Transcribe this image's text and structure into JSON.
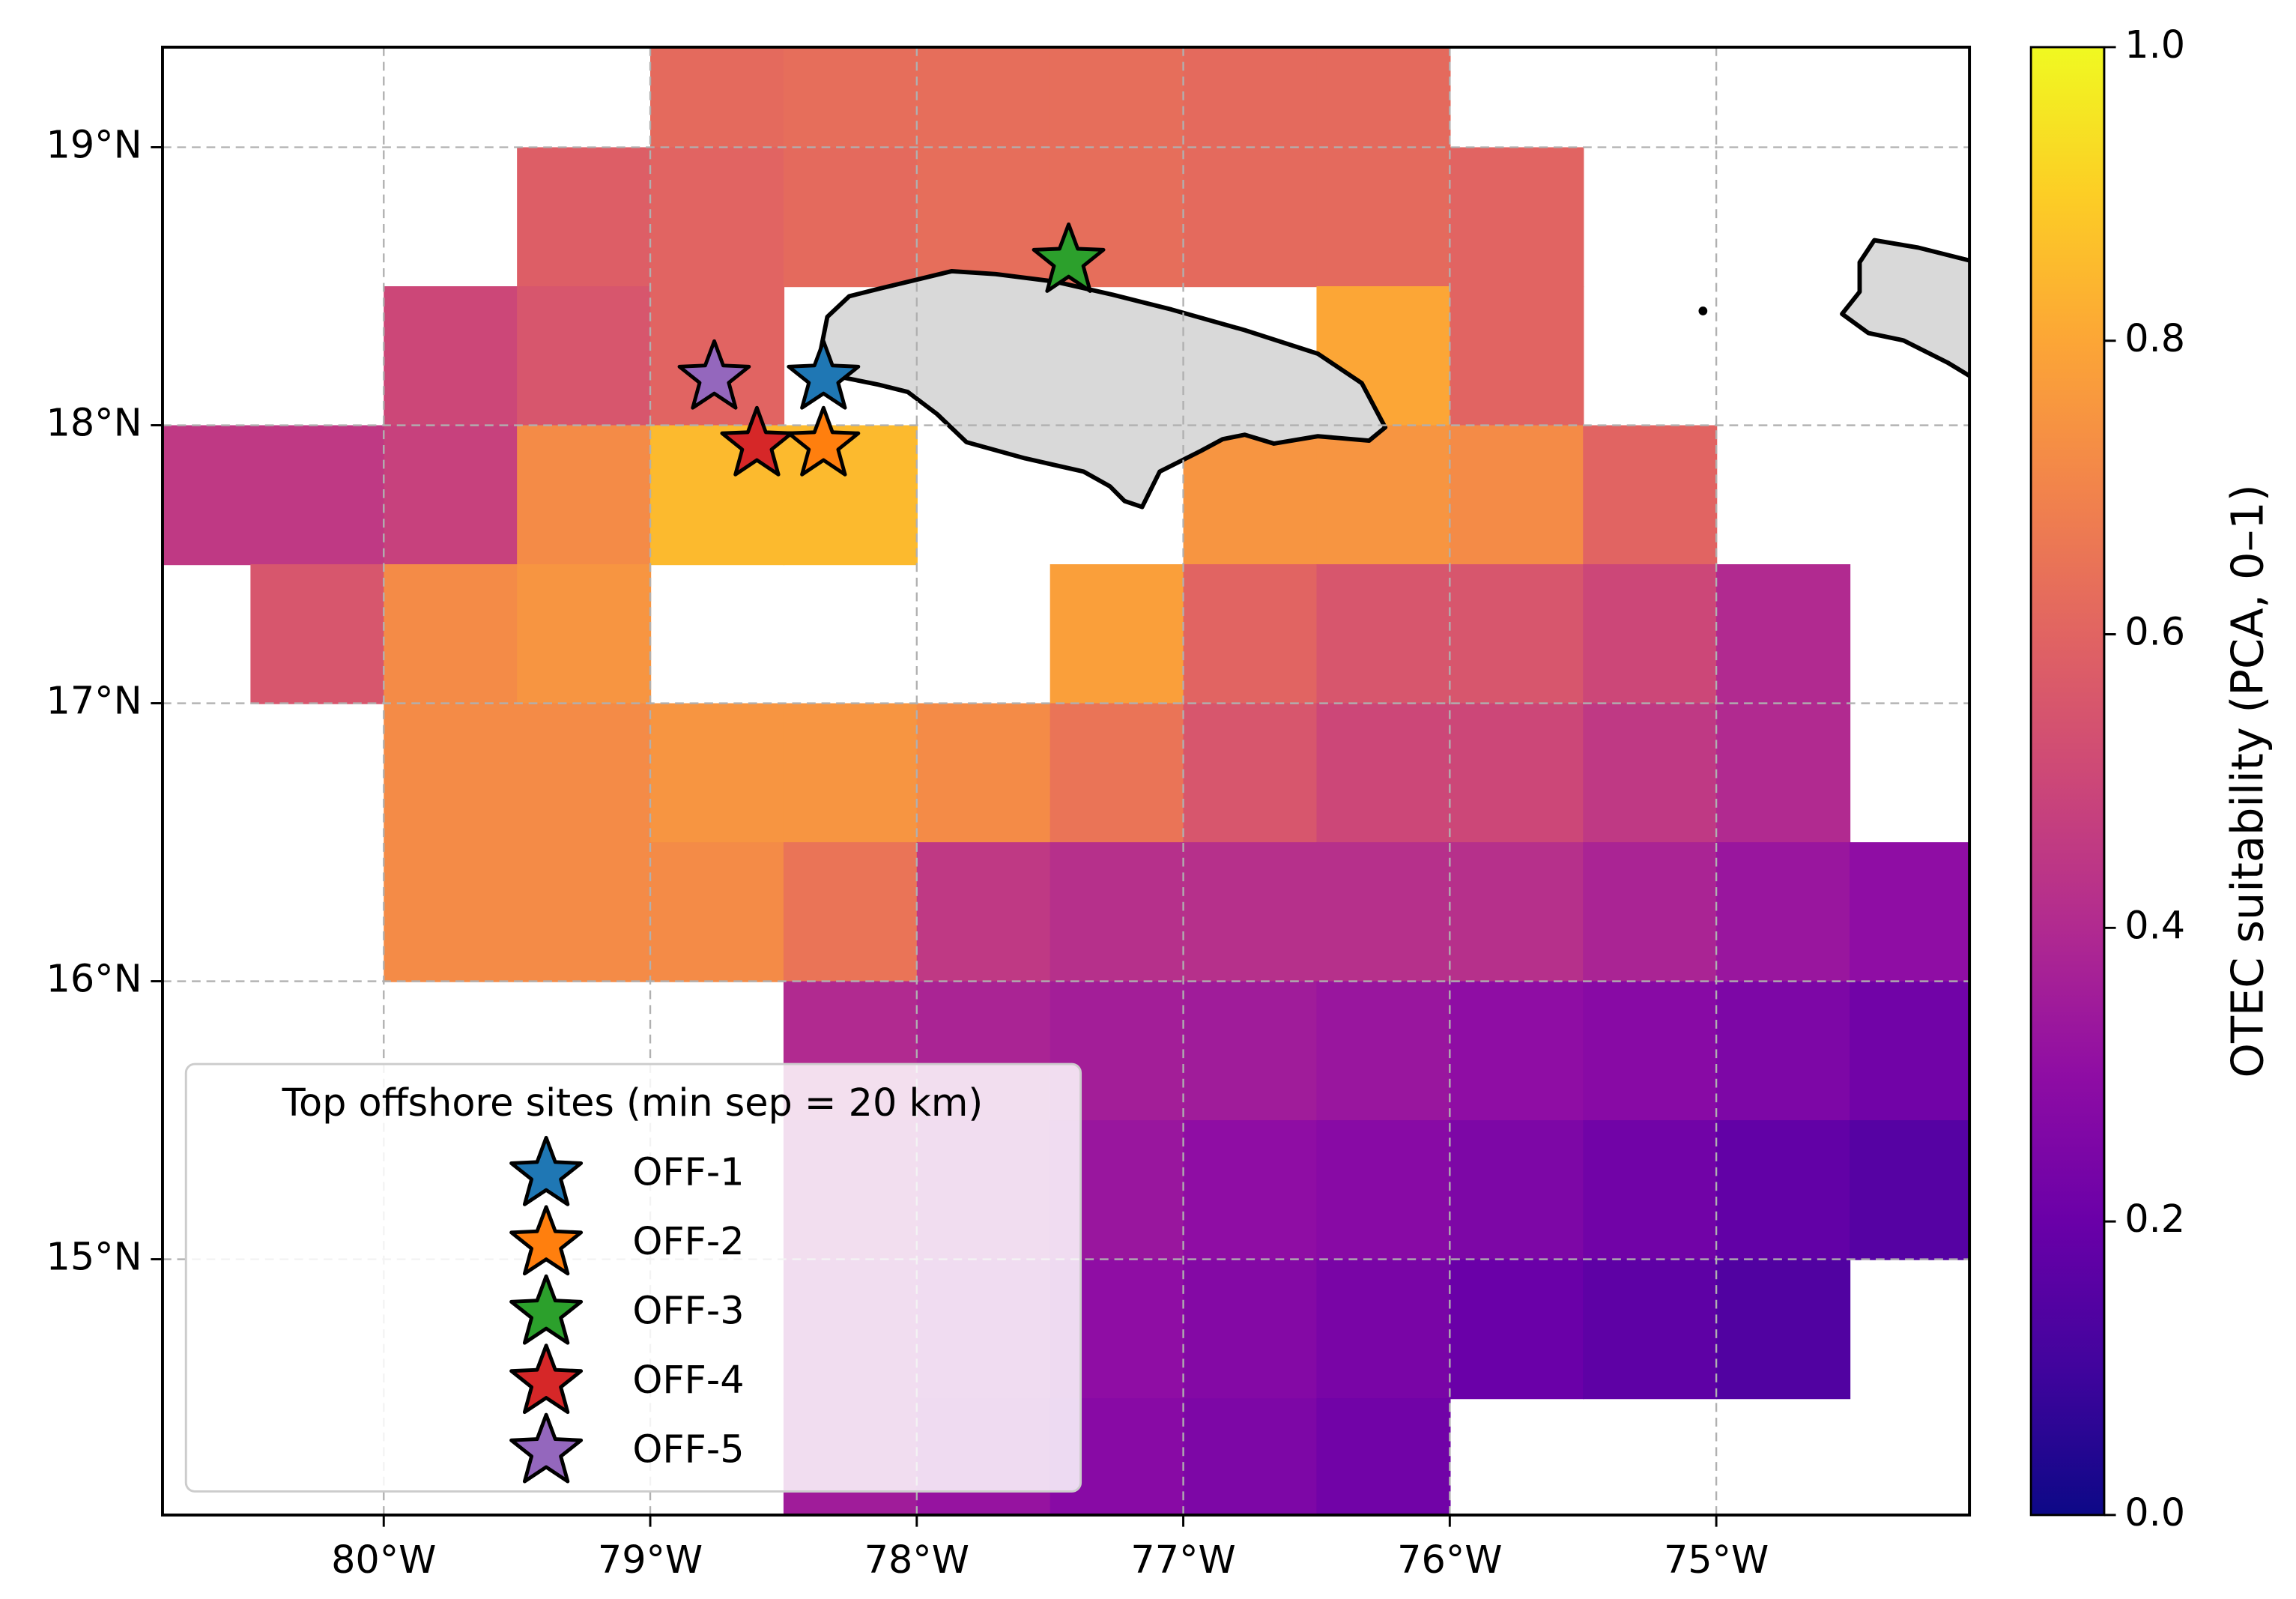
{
  "chart_data": {
    "type": "map",
    "colormap": "plasma",
    "colorbar_label": "OTEC suitability (PCA, 0–1)",
    "clim": [
      0,
      1
    ],
    "cticks": [
      {
        "value": 0,
        "label": "0.0"
      },
      0.2,
      0.4,
      0.6,
      0.8,
      {
        "value": 1,
        "label": "1.0"
      }
    ],
    "xlim": [
      -80.83,
      -74.05
    ],
    "ylim": [
      14.08,
      19.36
    ],
    "xticks": [
      {
        "value": -80,
        "label": "80°W"
      },
      {
        "value": -79,
        "label": "79°W"
      },
      {
        "value": -78,
        "label": "78°W"
      },
      {
        "value": -77,
        "label": "77°W"
      },
      {
        "value": -76,
        "label": "76°W"
      },
      {
        "value": -75,
        "label": "75°W"
      }
    ],
    "yticks": [
      {
        "value": 15,
        "label": "15°N"
      },
      {
        "value": 16,
        "label": "16°N"
      },
      {
        "value": 17,
        "label": "17°N"
      },
      {
        "value": 18,
        "label": "18°N"
      },
      {
        "value": 19,
        "label": "19°N"
      }
    ],
    "grid": true,
    "cell_size": 0.5,
    "x": [
      -80.75,
      -80.25,
      -79.75,
      -79.25,
      -78.75,
      -78.25,
      -77.75,
      -77.25,
      -76.75,
      -76.25,
      -75.75,
      -75.25,
      -74.75,
      -74.25
    ],
    "y": [
      19.25,
      18.75,
      18.25,
      17.75,
      17.25,
      16.75,
      16.25,
      15.75,
      15.25,
      14.75,
      14.25
    ],
    "z": [
      [
        null,
        null,
        null,
        null,
        0.62,
        0.63,
        0.63,
        0.63,
        0.62,
        0.62,
        null,
        null,
        null,
        null
      ],
      [
        null,
        null,
        null,
        0.58,
        0.6,
        0.62,
        0.63,
        0.63,
        0.62,
        0.62,
        0.6,
        null,
        null,
        null
      ],
      [
        null,
        null,
        0.5,
        0.55,
        0.6,
        null,
        null,
        null,
        null,
        0.8,
        0.6,
        null,
        null,
        null
      ],
      [
        0.45,
        0.45,
        0.48,
        0.72,
        0.85,
        0.85,
        null,
        null,
        0.75,
        0.75,
        0.72,
        0.6,
        null,
        null
      ],
      [
        null,
        0.55,
        0.72,
        0.75,
        null,
        null,
        null,
        0.78,
        0.6,
        0.55,
        0.55,
        0.5,
        0.4,
        null
      ],
      [
        null,
        null,
        0.72,
        0.72,
        0.75,
        0.75,
        0.72,
        0.65,
        0.55,
        0.5,
        0.5,
        0.45,
        0.4,
        null
      ],
      [
        null,
        null,
        0.72,
        0.72,
        0.72,
        0.65,
        0.45,
        0.42,
        0.42,
        0.42,
        0.42,
        0.38,
        0.33,
        0.3
      ],
      [
        null,
        null,
        null,
        null,
        null,
        0.4,
        0.38,
        0.36,
        0.35,
        0.33,
        0.3,
        0.28,
        0.25,
        0.22
      ],
      [
        null,
        null,
        null,
        null,
        null,
        0.38,
        0.35,
        0.33,
        0.3,
        0.28,
        0.25,
        0.22,
        0.18,
        0.15
      ],
      [
        null,
        null,
        null,
        null,
        null,
        0.36,
        0.33,
        0.3,
        0.27,
        0.24,
        0.2,
        0.17,
        0.14,
        null
      ],
      [
        null,
        null,
        null,
        null,
        null,
        0.35,
        0.32,
        0.28,
        0.25,
        0.22,
        null,
        null,
        null,
        null
      ]
    ],
    "legend_title": "Top offshore sites (min sep = 20 km)",
    "series": [
      {
        "name": "OFF-1",
        "color": "#1f77b4",
        "x": [
          -78.35
        ],
        "y": [
          18.17
        ]
      },
      {
        "name": "OFF-2",
        "color": "#ff7f0e",
        "x": [
          -78.35
        ],
        "y": [
          17.93
        ]
      },
      {
        "name": "OFF-3",
        "color": "#2ca02c",
        "x": [
          -77.43
        ],
        "y": [
          18.59
        ]
      },
      {
        "name": "OFF-4",
        "color": "#d62728",
        "x": [
          -78.6
        ],
        "y": [
          17.93
        ]
      },
      {
        "name": "OFF-5",
        "color": "#9467bd",
        "x": [
          -78.76
        ],
        "y": [
          18.17
        ]
      }
    ]
  }
}
